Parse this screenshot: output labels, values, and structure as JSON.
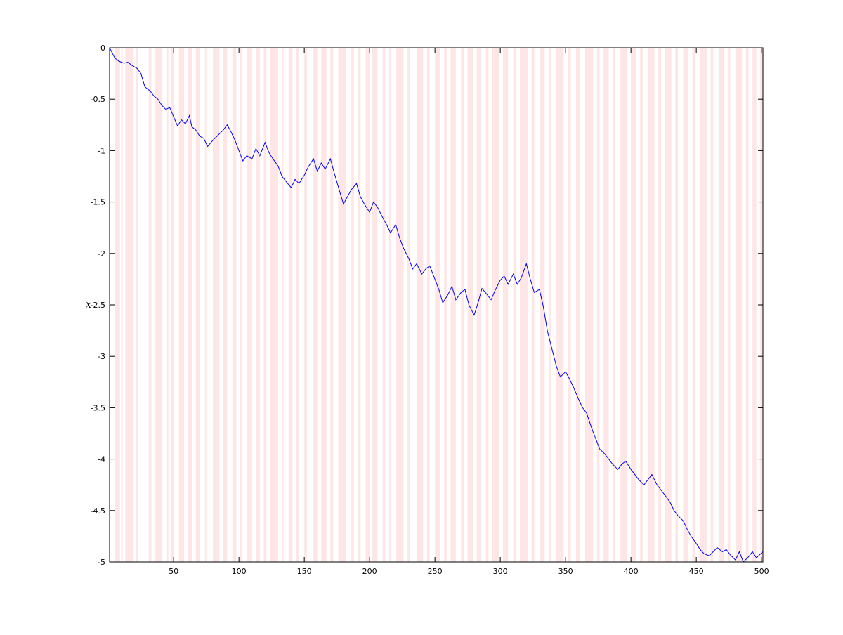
{
  "figure": {
    "background": "#ffffff"
  },
  "chart_data": {
    "type": "line",
    "title": "",
    "xlabel": "",
    "ylabel": "x",
    "xlim": [
      1,
      501
    ],
    "ylim": [
      -5,
      0
    ],
    "grid": false,
    "legend": "none",
    "line_color": "#0000ff",
    "shade_color": "#ffe6e6",
    "xticks": [
      50,
      100,
      150,
      200,
      250,
      300,
      350,
      400,
      450,
      500
    ],
    "xtick_labels": [
      "50",
      "100",
      "150",
      "200",
      "250",
      "300",
      "350",
      "400",
      "450",
      "500"
    ],
    "yticks": [
      0,
      -0.5,
      -1,
      -1.5,
      -2,
      -2.5,
      -3,
      -3.5,
      -4,
      -4.5,
      -5
    ],
    "ytick_labels": [
      "0",
      "-0.5",
      "-1",
      "-1.5",
      "-2",
      "-2.5",
      "-3",
      "-3.5",
      "-4",
      "-4.5",
      "-5"
    ],
    "shaded_intervals": [
      [
        5,
        9
      ],
      [
        10,
        11
      ],
      [
        13,
        19
      ],
      [
        21,
        23
      ],
      [
        31,
        33
      ],
      [
        36,
        41
      ],
      [
        45,
        46
      ],
      [
        48,
        50
      ],
      [
        54,
        58
      ],
      [
        61,
        64
      ],
      [
        67,
        70
      ],
      [
        74,
        75
      ],
      [
        80,
        85
      ],
      [
        88,
        91
      ],
      [
        95,
        98
      ],
      [
        101,
        102
      ],
      [
        106,
        110
      ],
      [
        113,
        116
      ],
      [
        119,
        121
      ],
      [
        124,
        130
      ],
      [
        133,
        134
      ],
      [
        138,
        141
      ],
      [
        144,
        146
      ],
      [
        150,
        152
      ],
      [
        157,
        160
      ],
      [
        163,
        167
      ],
      [
        170,
        172
      ],
      [
        176,
        182
      ],
      [
        186,
        188
      ],
      [
        191,
        193
      ],
      [
        197,
        200
      ],
      [
        202,
        206
      ],
      [
        210,
        212
      ],
      [
        215,
        216
      ],
      [
        220,
        226
      ],
      [
        229,
        231
      ],
      [
        236,
        241
      ],
      [
        244,
        246
      ],
      [
        250,
        254
      ],
      [
        257,
        259
      ],
      [
        262,
        266
      ],
      [
        270,
        272
      ],
      [
        275,
        279
      ],
      [
        282,
        285
      ],
      [
        289,
        291
      ],
      [
        294,
        299
      ],
      [
        302,
        306
      ],
      [
        310,
        312
      ],
      [
        315,
        321
      ],
      [
        324,
        326
      ],
      [
        330,
        334
      ],
      [
        337,
        339
      ],
      [
        343,
        348
      ],
      [
        352,
        354
      ],
      [
        358,
        361
      ],
      [
        365,
        371
      ],
      [
        374,
        376
      ],
      [
        379,
        383
      ],
      [
        386,
        388
      ],
      [
        392,
        397
      ],
      [
        400,
        404
      ],
      [
        407,
        409
      ],
      [
        413,
        418
      ],
      [
        421,
        423
      ],
      [
        426,
        431
      ],
      [
        434,
        436
      ],
      [
        440,
        444
      ],
      [
        447,
        449
      ],
      [
        453,
        458
      ],
      [
        461,
        463
      ],
      [
        467,
        471
      ],
      [
        474,
        476
      ],
      [
        480,
        485
      ],
      [
        488,
        490
      ],
      [
        493,
        496
      ],
      [
        499,
        501
      ]
    ],
    "series": [
      {
        "x": [
          1,
          3,
          5,
          8,
          12,
          15,
          18,
          22,
          25,
          28,
          32,
          35,
          38,
          41,
          44,
          47,
          50,
          53,
          56,
          59,
          62,
          64,
          67,
          70,
          73,
          76,
          80,
          84,
          88,
          91,
          94,
          97,
          100,
          103,
          106,
          110,
          113,
          116,
          120,
          123,
          126,
          130,
          133,
          136,
          140,
          143,
          146,
          150,
          153,
          157,
          160,
          163,
          166,
          170,
          173,
          176,
          180,
          183,
          186,
          190,
          193,
          196,
          200,
          203,
          206,
          210,
          213,
          216,
          220,
          223,
          226,
          230,
          233,
          236,
          240,
          243,
          246,
          250,
          253,
          256,
          260,
          263,
          266,
          270,
          273,
          276,
          280,
          283,
          286,
          290,
          293,
          296,
          300,
          303,
          306,
          310,
          313,
          316,
          320,
          323,
          326,
          330,
          333,
          336,
          340,
          343,
          346,
          350,
          353,
          356,
          360,
          363,
          366,
          370,
          373,
          376,
          380,
          383,
          386,
          390,
          393,
          396,
          400,
          403,
          406,
          410,
          413,
          416,
          420,
          423,
          426,
          430,
          433,
          436,
          440,
          443,
          446,
          450,
          453,
          456,
          460,
          463,
          466,
          470,
          473,
          476,
          480,
          483,
          486,
          490,
          493,
          496,
          501
        ],
        "y": [
          0,
          -0.05,
          -0.1,
          -0.13,
          -0.15,
          -0.14,
          -0.17,
          -0.2,
          -0.25,
          -0.38,
          -0.42,
          -0.47,
          -0.5,
          -0.56,
          -0.6,
          -0.58,
          -0.67,
          -0.76,
          -0.7,
          -0.74,
          -0.66,
          -0.77,
          -0.8,
          -0.86,
          -0.88,
          -0.96,
          -0.9,
          -0.85,
          -0.8,
          -0.75,
          -0.82,
          -0.9,
          -1.0,
          -1.1,
          -1.05,
          -1.08,
          -0.98,
          -1.05,
          -0.92,
          -1.02,
          -1.08,
          -1.15,
          -1.25,
          -1.3,
          -1.36,
          -1.28,
          -1.32,
          -1.24,
          -1.16,
          -1.08,
          -1.2,
          -1.12,
          -1.18,
          -1.08,
          -1.22,
          -1.35,
          -1.52,
          -1.45,
          -1.38,
          -1.32,
          -1.45,
          -1.52,
          -1.6,
          -1.5,
          -1.55,
          -1.65,
          -1.72,
          -1.8,
          -1.72,
          -1.85,
          -1.95,
          -2.05,
          -2.15,
          -2.1,
          -2.2,
          -2.15,
          -2.12,
          -2.25,
          -2.35,
          -2.48,
          -2.4,
          -2.32,
          -2.45,
          -2.38,
          -2.35,
          -2.5,
          -2.6,
          -2.48,
          -2.34,
          -2.4,
          -2.45,
          -2.36,
          -2.26,
          -2.22,
          -2.3,
          -2.2,
          -2.3,
          -2.24,
          -2.1,
          -2.25,
          -2.38,
          -2.35,
          -2.52,
          -2.75,
          -2.95,
          -3.1,
          -3.2,
          -3.15,
          -3.22,
          -3.3,
          -3.42,
          -3.5,
          -3.55,
          -3.7,
          -3.8,
          -3.9,
          -3.95,
          -4.0,
          -4.05,
          -4.1,
          -4.05,
          -4.02,
          -4.1,
          -4.15,
          -4.2,
          -4.25,
          -4.2,
          -4.15,
          -4.25,
          -4.3,
          -4.35,
          -4.42,
          -4.5,
          -4.55,
          -4.6,
          -4.68,
          -4.75,
          -4.82,
          -4.88,
          -4.92,
          -4.94,
          -4.9,
          -4.86,
          -4.9,
          -4.88,
          -4.93,
          -4.98,
          -4.9,
          -5.0,
          -4.95,
          -4.9,
          -4.96,
          -4.9
        ]
      }
    ]
  }
}
